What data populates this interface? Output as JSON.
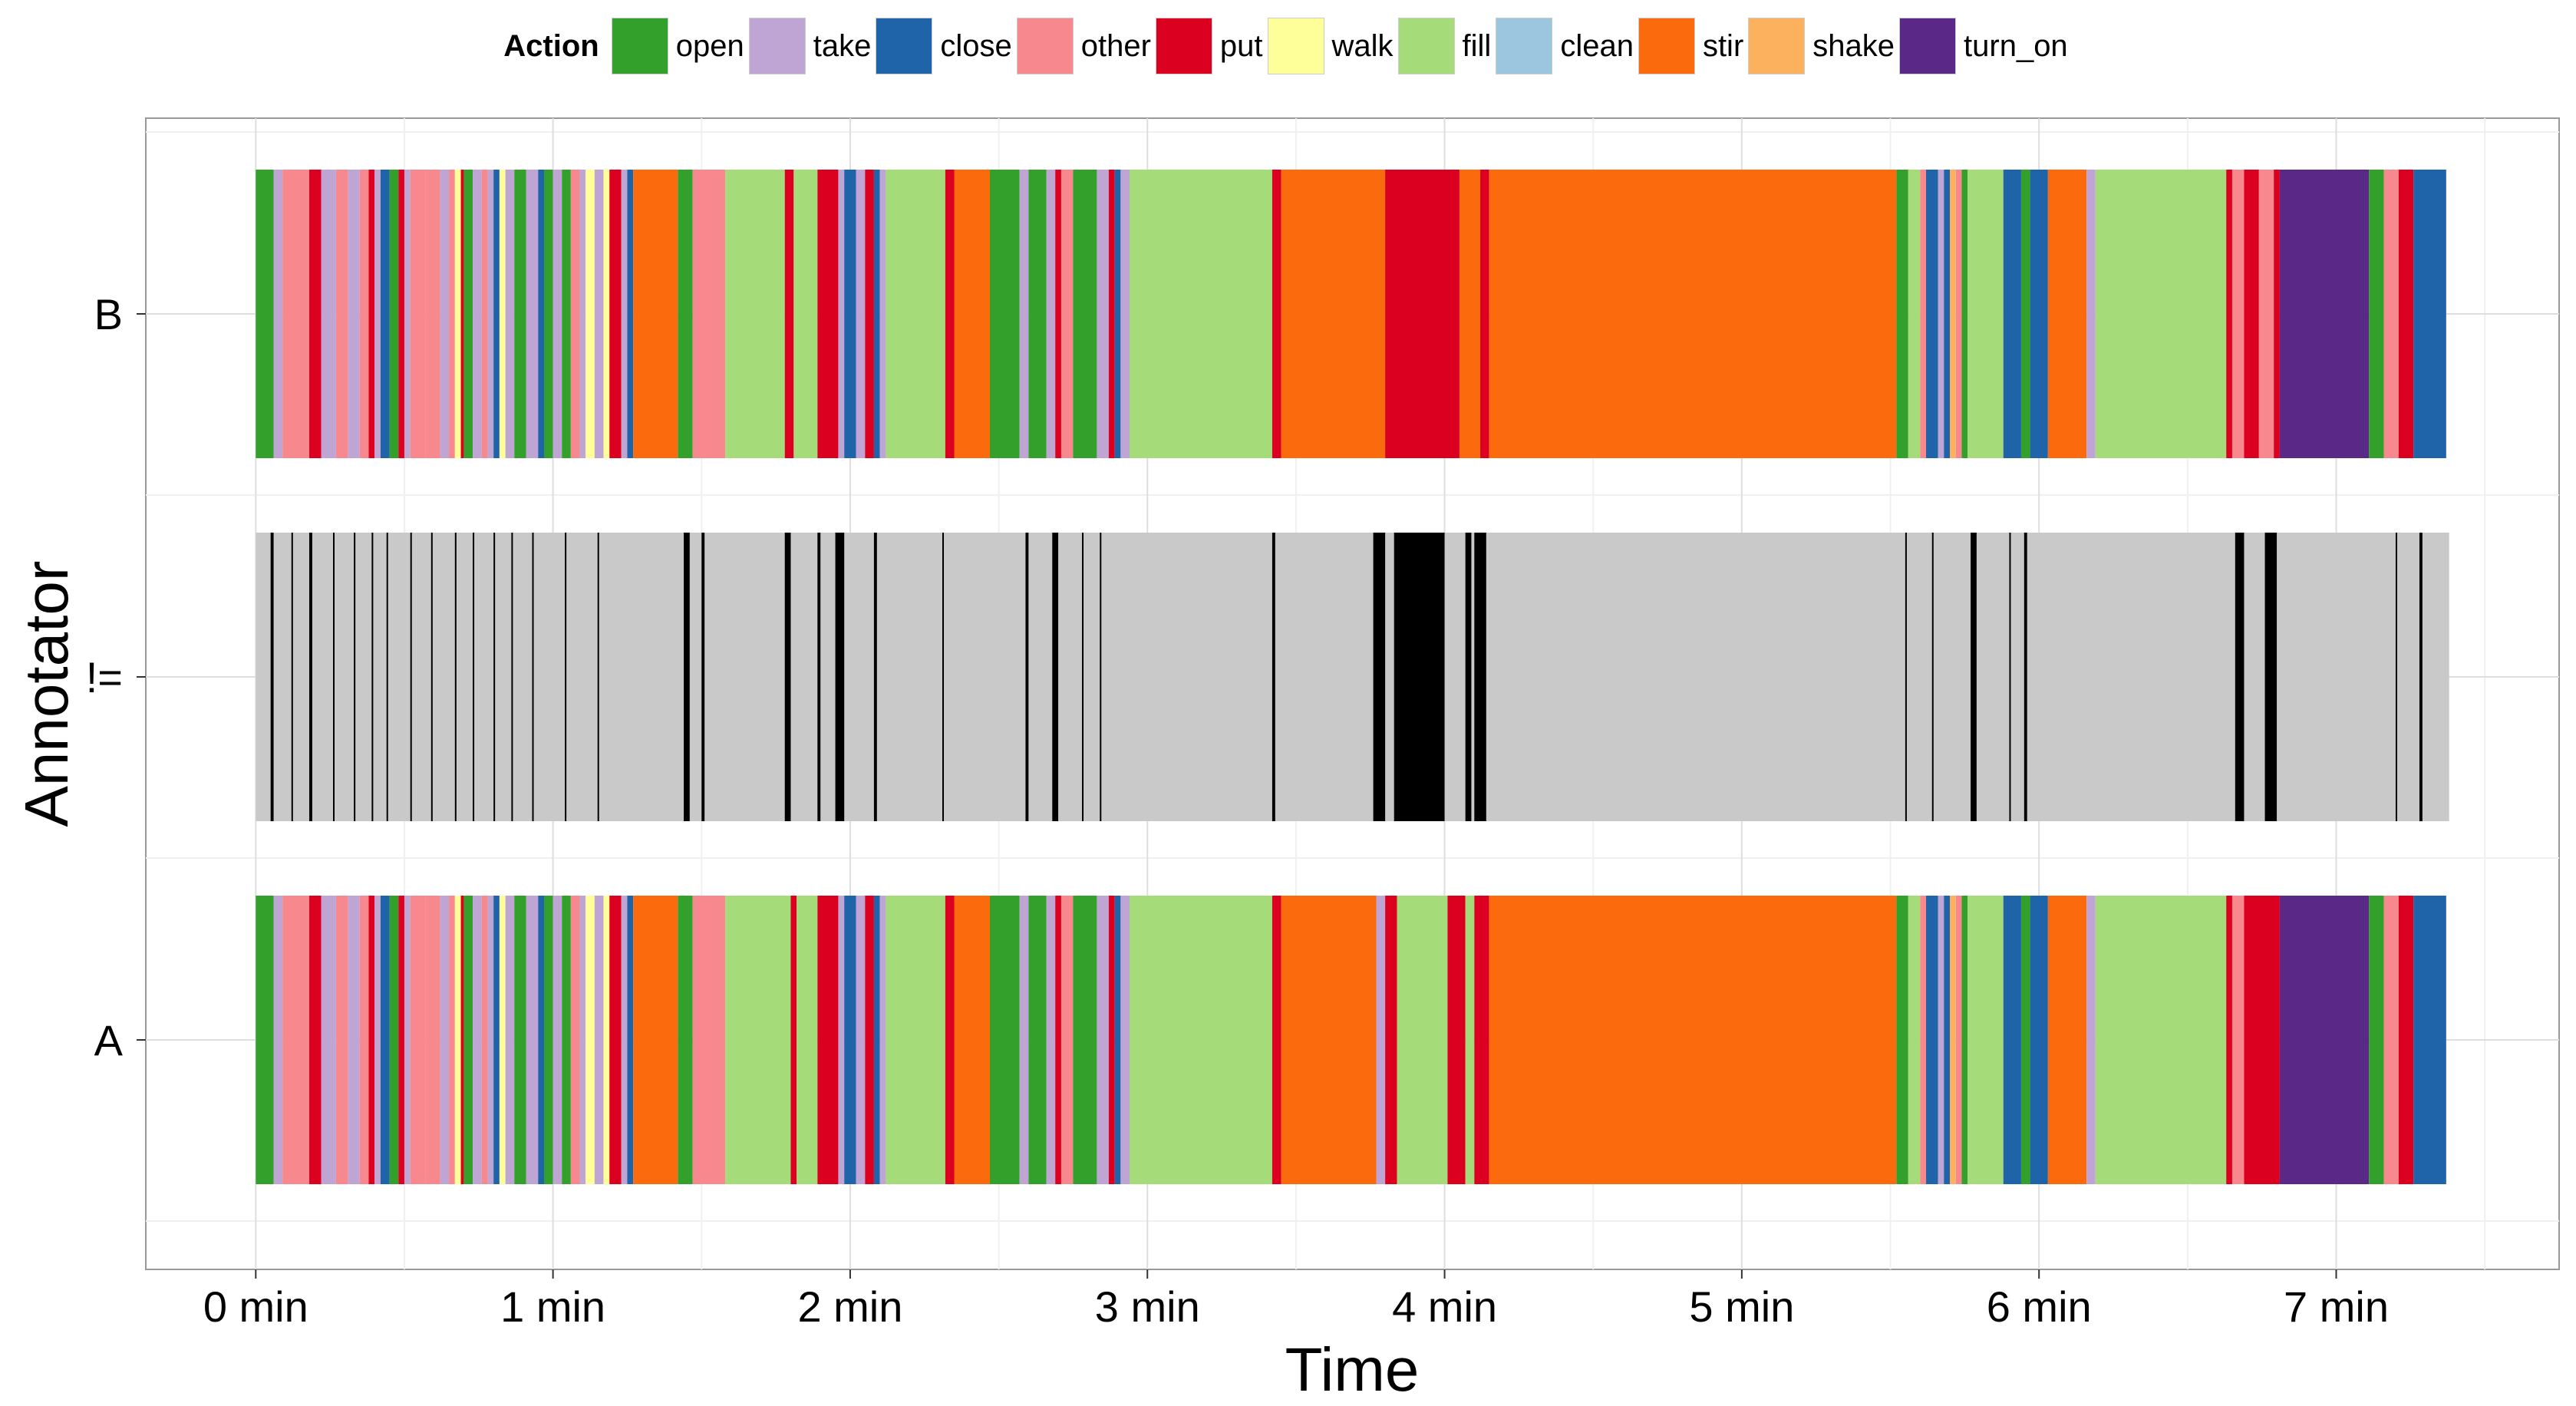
{
  "legend": {
    "title": "Action",
    "entries": [
      {
        "name": "open",
        "color": "#33A02C"
      },
      {
        "name": "take",
        "color": "#BFA5D4"
      },
      {
        "name": "close",
        "color": "#1F64A8"
      },
      {
        "name": "other",
        "color": "#F7888E"
      },
      {
        "name": "put",
        "color": "#DB0020"
      },
      {
        "name": "walk",
        "color": "#FFFF99"
      },
      {
        "name": "fill",
        "color": "#A6DB7A"
      },
      {
        "name": "clean",
        "color": "#9CC6DF"
      },
      {
        "name": "stir",
        "color": "#FB6A0D"
      },
      {
        "name": "shake",
        "color": "#FCB15F"
      },
      {
        "name": "turn_on",
        "color": "#5A2987"
      }
    ]
  },
  "chart_data": {
    "type": "timeline",
    "xlabel": "Time",
    "ylabel": "Annotator",
    "xlim": [
      -0.37,
      7.75
    ],
    "x_ticks": [
      0,
      1,
      2,
      3,
      4,
      5,
      6,
      7
    ],
    "x_tick_labels": [
      "0 min",
      "1 min",
      "2 min",
      "3 min",
      "4 min",
      "5 min",
      "6 min",
      "7 min"
    ],
    "y_categories": [
      "A",
      "!=",
      "B"
    ],
    "grid": true,
    "tracks": {
      "B": [
        [
          "open",
          0,
          0.06
        ],
        [
          "take",
          0.06,
          0.09
        ],
        [
          "other",
          0.09,
          0.18
        ],
        [
          "put",
          0.18,
          0.22
        ],
        [
          "take",
          0.22,
          0.27
        ],
        [
          "other",
          0.27,
          0.31
        ],
        [
          "take",
          0.31,
          0.35
        ],
        [
          "other",
          0.35,
          0.38
        ],
        [
          "put",
          0.38,
          0.4
        ],
        [
          "take",
          0.4,
          0.42
        ],
        [
          "close",
          0.42,
          0.45
        ],
        [
          "open",
          0.45,
          0.48
        ],
        [
          "put",
          0.48,
          0.5
        ],
        [
          "take",
          0.5,
          0.52
        ],
        [
          "other",
          0.52,
          0.57
        ],
        [
          "other",
          0.57,
          0.62
        ],
        [
          "take",
          0.62,
          0.65
        ],
        [
          "other",
          0.65,
          0.67
        ],
        [
          "walk",
          0.67,
          0.69
        ],
        [
          "put",
          0.69,
          0.7
        ],
        [
          "open",
          0.7,
          0.73
        ],
        [
          "take",
          0.73,
          0.76
        ],
        [
          "other",
          0.76,
          0.78
        ],
        [
          "take",
          0.78,
          0.8
        ],
        [
          "close",
          0.8,
          0.82
        ],
        [
          "walk",
          0.82,
          0.84
        ],
        [
          "take",
          0.84,
          0.87
        ],
        [
          "open",
          0.87,
          0.91
        ],
        [
          "take",
          0.91,
          0.95
        ],
        [
          "close",
          0.95,
          0.97
        ],
        [
          "open",
          0.97,
          1.0
        ],
        [
          "take",
          1.0,
          1.03
        ],
        [
          "open",
          1.03,
          1.06
        ],
        [
          "other",
          1.06,
          1.09
        ],
        [
          "take",
          1.09,
          1.11
        ],
        [
          "walk",
          1.11,
          1.14
        ],
        [
          "take",
          1.14,
          1.17
        ],
        [
          "walk",
          1.17,
          1.19
        ],
        [
          "put",
          1.19,
          1.23
        ],
        [
          "take",
          1.23,
          1.25
        ],
        [
          "close",
          1.25,
          1.27
        ],
        [
          "stir",
          1.27,
          1.42
        ],
        [
          "open",
          1.42,
          1.47
        ],
        [
          "other",
          1.47,
          1.58
        ],
        [
          "fill",
          1.58,
          1.78
        ],
        [
          "put",
          1.78,
          1.81
        ],
        [
          "fill",
          1.81,
          1.89
        ],
        [
          "put",
          1.89,
          1.96
        ],
        [
          "take",
          1.96,
          1.98
        ],
        [
          "close",
          1.98,
          2.02
        ],
        [
          "take",
          2.02,
          2.05
        ],
        [
          "put",
          2.05,
          2.08
        ],
        [
          "close",
          2.08,
          2.1
        ],
        [
          "take",
          2.1,
          2.12
        ],
        [
          "fill",
          2.12,
          2.32
        ],
        [
          "put",
          2.32,
          2.35
        ],
        [
          "stir",
          2.35,
          2.47
        ],
        [
          "open",
          2.47,
          2.57
        ],
        [
          "take",
          2.57,
          2.6
        ],
        [
          "open",
          2.6,
          2.66
        ],
        [
          "take",
          2.66,
          2.69
        ],
        [
          "put",
          2.69,
          2.71
        ],
        [
          "other",
          2.71,
          2.75
        ],
        [
          "open",
          2.75,
          2.83
        ],
        [
          "take",
          2.83,
          2.87
        ],
        [
          "put",
          2.87,
          2.89
        ],
        [
          "close",
          2.89,
          2.91
        ],
        [
          "take",
          2.91,
          2.94
        ],
        [
          "fill",
          2.94,
          3.42
        ],
        [
          "put",
          3.42,
          3.45
        ],
        [
          "stir",
          3.45,
          3.8
        ],
        [
          "put",
          3.8,
          4.05
        ],
        [
          "stir",
          4.05,
          4.12
        ],
        [
          "put",
          4.12,
          4.15
        ],
        [
          "stir",
          4.15,
          5.52
        ],
        [
          "open",
          5.52,
          5.56
        ],
        [
          "fill",
          5.56,
          5.6
        ],
        [
          "other",
          5.6,
          5.62
        ],
        [
          "close",
          5.62,
          5.66
        ],
        [
          "take",
          5.66,
          5.68
        ],
        [
          "close",
          5.68,
          5.7
        ],
        [
          "shake",
          5.7,
          5.72
        ],
        [
          "other",
          5.72,
          5.74
        ],
        [
          "open",
          5.74,
          5.76
        ],
        [
          "fill",
          5.76,
          5.88
        ],
        [
          "close",
          5.88,
          5.94
        ],
        [
          "open",
          5.94,
          5.97
        ],
        [
          "close",
          5.97,
          6.03
        ],
        [
          "stir",
          6.03,
          6.16
        ],
        [
          "take",
          6.16,
          6.19
        ],
        [
          "fill",
          6.19,
          6.63
        ],
        [
          "put",
          6.63,
          6.65
        ],
        [
          "other",
          6.65,
          6.69
        ],
        [
          "put",
          6.69,
          6.74
        ],
        [
          "other",
          6.74,
          6.79
        ],
        [
          "put",
          6.79,
          6.81
        ],
        [
          "turn_on",
          6.81,
          7.11
        ],
        [
          "open",
          7.11,
          7.16
        ],
        [
          "other",
          7.16,
          7.21
        ],
        [
          "put",
          7.21,
          7.26
        ],
        [
          "close",
          7.26,
          7.37
        ]
      ],
      "A": [
        [
          "open",
          0,
          0.06
        ],
        [
          "take",
          0.06,
          0.09
        ],
        [
          "other",
          0.09,
          0.18
        ],
        [
          "put",
          0.18,
          0.22
        ],
        [
          "take",
          0.22,
          0.27
        ],
        [
          "other",
          0.27,
          0.31
        ],
        [
          "take",
          0.31,
          0.35
        ],
        [
          "other",
          0.35,
          0.38
        ],
        [
          "put",
          0.38,
          0.4
        ],
        [
          "take",
          0.4,
          0.42
        ],
        [
          "close",
          0.42,
          0.45
        ],
        [
          "open",
          0.45,
          0.48
        ],
        [
          "put",
          0.48,
          0.5
        ],
        [
          "take",
          0.5,
          0.52
        ],
        [
          "other",
          0.52,
          0.57
        ],
        [
          "other",
          0.57,
          0.62
        ],
        [
          "take",
          0.62,
          0.65
        ],
        [
          "other",
          0.65,
          0.67
        ],
        [
          "walk",
          0.67,
          0.69
        ],
        [
          "put",
          0.69,
          0.7
        ],
        [
          "open",
          0.7,
          0.73
        ],
        [
          "take",
          0.73,
          0.76
        ],
        [
          "other",
          0.76,
          0.78
        ],
        [
          "take",
          0.78,
          0.8
        ],
        [
          "close",
          0.8,
          0.82
        ],
        [
          "walk",
          0.82,
          0.84
        ],
        [
          "take",
          0.84,
          0.87
        ],
        [
          "open",
          0.87,
          0.91
        ],
        [
          "take",
          0.91,
          0.95
        ],
        [
          "close",
          0.95,
          0.97
        ],
        [
          "open",
          0.97,
          1.0
        ],
        [
          "take",
          1.0,
          1.03
        ],
        [
          "open",
          1.03,
          1.06
        ],
        [
          "other",
          1.06,
          1.09
        ],
        [
          "take",
          1.09,
          1.11
        ],
        [
          "walk",
          1.11,
          1.14
        ],
        [
          "take",
          1.14,
          1.17
        ],
        [
          "walk",
          1.17,
          1.19
        ],
        [
          "put",
          1.19,
          1.23
        ],
        [
          "take",
          1.23,
          1.25
        ],
        [
          "close",
          1.25,
          1.27
        ],
        [
          "stir",
          1.27,
          1.42
        ],
        [
          "open",
          1.42,
          1.47
        ],
        [
          "other",
          1.47,
          1.58
        ],
        [
          "fill",
          1.58,
          1.8
        ],
        [
          "put",
          1.8,
          1.82
        ],
        [
          "fill",
          1.82,
          1.89
        ],
        [
          "put",
          1.89,
          1.96
        ],
        [
          "take",
          1.96,
          1.98
        ],
        [
          "close",
          1.98,
          2.02
        ],
        [
          "take",
          2.02,
          2.05
        ],
        [
          "put",
          2.05,
          2.08
        ],
        [
          "close",
          2.08,
          2.1
        ],
        [
          "take",
          2.1,
          2.12
        ],
        [
          "fill",
          2.12,
          2.32
        ],
        [
          "put",
          2.32,
          2.35
        ],
        [
          "stir",
          2.35,
          2.47
        ],
        [
          "open",
          2.47,
          2.57
        ],
        [
          "take",
          2.57,
          2.6
        ],
        [
          "open",
          2.6,
          2.66
        ],
        [
          "take",
          2.66,
          2.69
        ],
        [
          "put",
          2.69,
          2.71
        ],
        [
          "other",
          2.71,
          2.75
        ],
        [
          "open",
          2.75,
          2.83
        ],
        [
          "take",
          2.83,
          2.87
        ],
        [
          "put",
          2.87,
          2.89
        ],
        [
          "close",
          2.89,
          2.91
        ],
        [
          "take",
          2.91,
          2.94
        ],
        [
          "fill",
          2.94,
          3.42
        ],
        [
          "put",
          3.42,
          3.45
        ],
        [
          "stir",
          3.45,
          3.77
        ],
        [
          "take",
          3.77,
          3.8
        ],
        [
          "put",
          3.8,
          3.84
        ],
        [
          "fill",
          3.84,
          4.01
        ],
        [
          "put",
          4.01,
          4.07
        ],
        [
          "fill",
          4.07,
          4.1
        ],
        [
          "put",
          4.1,
          4.15
        ],
        [
          "stir",
          4.15,
          5.52
        ],
        [
          "open",
          5.52,
          5.56
        ],
        [
          "fill",
          5.56,
          5.6
        ],
        [
          "other",
          5.6,
          5.62
        ],
        [
          "close",
          5.62,
          5.66
        ],
        [
          "take",
          5.66,
          5.68
        ],
        [
          "close",
          5.68,
          5.7
        ],
        [
          "shake",
          5.7,
          5.72
        ],
        [
          "other",
          5.72,
          5.74
        ],
        [
          "open",
          5.74,
          5.76
        ],
        [
          "fill",
          5.76,
          5.88
        ],
        [
          "close",
          5.88,
          5.94
        ],
        [
          "open",
          5.94,
          5.97
        ],
        [
          "close",
          5.97,
          6.03
        ],
        [
          "stir",
          6.03,
          6.16
        ],
        [
          "take",
          6.16,
          6.19
        ],
        [
          "fill",
          6.19,
          6.63
        ],
        [
          "put",
          6.63,
          6.65
        ],
        [
          "other",
          6.65,
          6.69
        ],
        [
          "put",
          6.69,
          6.81
        ],
        [
          "turn_on",
          6.81,
          7.11
        ],
        [
          "open",
          7.11,
          7.16
        ],
        [
          "other",
          7.16,
          7.21
        ],
        [
          "put",
          7.21,
          7.26
        ],
        [
          "close",
          7.26,
          7.37
        ]
      ],
      "!=": {
        "background_color": "#C9C9C9",
        "mismatch_color": "#000000",
        "start": 0,
        "end": 7.38,
        "mismatch_intervals": [
          [
            0.05,
            0.06
          ],
          [
            0.12,
            0.125
          ],
          [
            0.18,
            0.19
          ],
          [
            0.26,
            0.265
          ],
          [
            0.33,
            0.335
          ],
          [
            0.39,
            0.395
          ],
          [
            0.44,
            0.445
          ],
          [
            0.52,
            0.525
          ],
          [
            0.59,
            0.595
          ],
          [
            0.67,
            0.675
          ],
          [
            0.73,
            0.735
          ],
          [
            0.8,
            0.805
          ],
          [
            0.86,
            0.865
          ],
          [
            0.93,
            0.935
          ],
          [
            1.04,
            1.045
          ],
          [
            1.15,
            1.155
          ],
          [
            1.44,
            1.46
          ],
          [
            1.5,
            1.51
          ],
          [
            1.78,
            1.8
          ],
          [
            1.89,
            1.9
          ],
          [
            1.95,
            1.98
          ],
          [
            2.08,
            2.09
          ],
          [
            2.31,
            2.315
          ],
          [
            2.59,
            2.6
          ],
          [
            2.68,
            2.7
          ],
          [
            2.78,
            2.785
          ],
          [
            2.84,
            2.845
          ],
          [
            3.42,
            3.43
          ],
          [
            3.76,
            3.8
          ],
          [
            3.83,
            4.0
          ],
          [
            4.07,
            4.09
          ],
          [
            4.1,
            4.14
          ],
          [
            5.55,
            5.555
          ],
          [
            5.64,
            5.645
          ],
          [
            5.77,
            5.79
          ],
          [
            5.9,
            5.905
          ],
          [
            5.95,
            5.96
          ],
          [
            6.66,
            6.69
          ],
          [
            6.76,
            6.8
          ],
          [
            7.2,
            7.205
          ],
          [
            7.28,
            7.29
          ]
        ]
      }
    }
  }
}
